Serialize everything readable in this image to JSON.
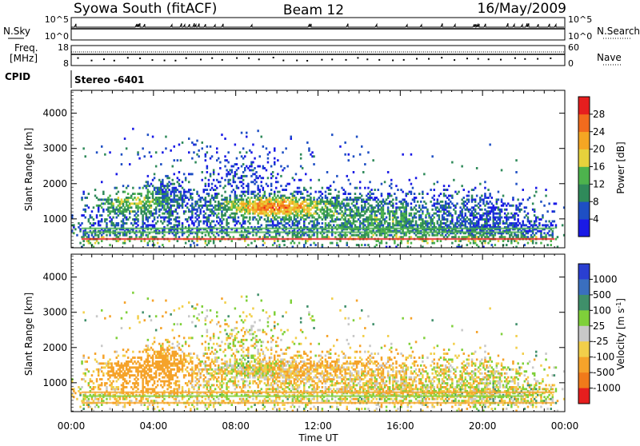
{
  "header": {
    "station": "Syowa South (fitACF)",
    "beam": "Beam 12",
    "date": "16/May/2009"
  },
  "status_panels": {
    "nsky": {
      "left_label": "N.Sky",
      "left_ticks": [
        "10^5",
        "10^0"
      ],
      "right_label": "N.Search",
      "right_ticks": [
        "10^5",
        "10^0"
      ]
    },
    "freq": {
      "left_label_1": "Freq.",
      "left_label_2": "[MHz]",
      "left_ticks": [
        "18",
        "8"
      ],
      "right_label": "Nave",
      "right_ticks": [
        "60",
        "0"
      ]
    },
    "cpid_label": "CPID",
    "cpid_value": "Stereo -6401"
  },
  "colors": {
    "power_scale": [
      "#1a1ae6",
      "#1e4fc4",
      "#2f8a5a",
      "#4db34d",
      "#e6d23c",
      "#f5a623",
      "#f26b1d",
      "#e61e1e"
    ],
    "velocity_scale": [
      "#2a3fd1",
      "#3a6fbf",
      "#3f8f6a",
      "#7fd03a",
      "#c8c8c8",
      "#f2cf4a",
      "#f5a32a",
      "#f07a1a",
      "#e61e1e"
    ]
  },
  "chart_data": [
    {
      "type": "heatmap",
      "name": "power",
      "ylabel": "Slant Range [km]",
      "ylim": [
        180,
        4650
      ],
      "yticks": [
        "1000",
        "2000",
        "3000",
        "4000"
      ],
      "colorbar_label": "Power [dB]",
      "colorbar_ticks": [
        "4",
        "8",
        "12",
        "16",
        "20",
        "24",
        "28"
      ],
      "colorbar_range": [
        0,
        32
      ]
    },
    {
      "type": "heatmap",
      "name": "velocity",
      "ylabel": "Slant Range [km]",
      "ylim": [
        180,
        4650
      ],
      "yticks": [
        "1000",
        "2000",
        "3000",
        "4000"
      ],
      "colorbar_label": "Velocity [m s",
      "colorbar_label_sup": "-1",
      "colorbar_label_end": "]",
      "colorbar_ticks": [
        "1000",
        "500",
        "100",
        "25",
        "-25",
        "-100",
        "-500",
        "-1000"
      ]
    }
  ],
  "time_axis": {
    "ticks": [
      "00:00",
      "04:00",
      "08:00",
      "12:00",
      "16:00",
      "20:00",
      "00:00"
    ],
    "label": "Time UT",
    "range_hours": [
      0,
      24
    ]
  }
}
